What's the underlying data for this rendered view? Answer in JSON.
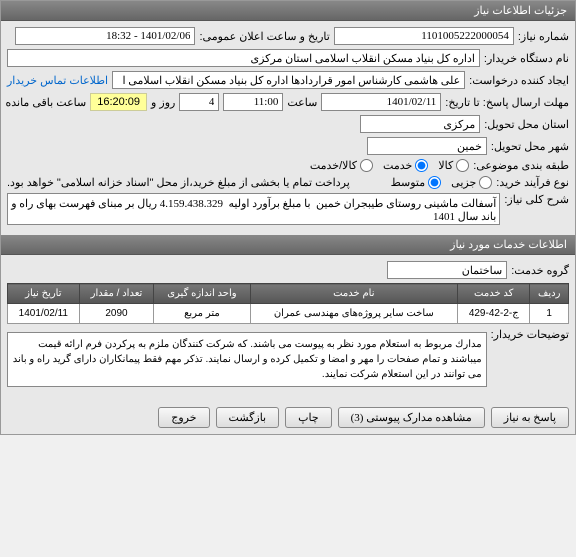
{
  "header": {
    "title": "جزئیات اطلاعات نیاز"
  },
  "form": {
    "need_number_label": "شماره نیاز:",
    "need_number": "1101005222000054",
    "announce_date_label": "تاریخ و ساعت اعلان عمومی:",
    "announce_date": "1401/02/06 - 18:32",
    "buyer_org_label": "نام دستگاه خریدار:",
    "buyer_org": "اداره کل بنیاد مسکن انقلاب اسلامی استان مرکزی",
    "requester_label": "ایجاد کننده درخواست:",
    "requester": "علی هاشمی کارشناس امور قراردادها اداره کل بنیاد مسکن انقلاب اسلامی ا",
    "contact_link": "اطلاعات تماس خریدار",
    "deadline_label": "مهلت ارسال پاسخ: تا تاریخ:",
    "deadline_date": "1401/02/11",
    "time_label": "ساعت",
    "deadline_time": "11:00",
    "days_value": "4",
    "days_label": "روز و",
    "countdown": "16:20:09",
    "remaining_label": "ساعت باقی مانده",
    "province_label": "استان محل تحویل:",
    "province": "مرکزی",
    "city_label": "شهر محل تحویل:",
    "city": "خمین",
    "category_label": "طبقه بندی موضوعی:",
    "cat_kala": "کالا",
    "cat_khadmat": "خدمت",
    "cat_kalakhdmat": "کالا/خدمت",
    "process_label": "نوع فرآیند خرید:",
    "proc_jozi": "جزیی",
    "proc_motevaset": "متوسط",
    "payment_note": "پرداخت تمام یا بخشی از مبلغ خرید،از محل \"اسناد خزانه اسلامی\" خواهد بود.",
    "general_desc_label": "شرح کلی نیاز:",
    "general_desc": "آسفالت ماشینی روستای طیبجران خمین  با مبلغ برآورد اولیه  4.159.438.329 ریال بر مبنای فهرست بهای راه و باند سال 1401"
  },
  "services_header": "اطلاعات خدمات مورد نیاز",
  "services": {
    "group_label": "گروه خدمت:",
    "group_value": "ساختمان",
    "table": {
      "cols": [
        "ردیف",
        "کد خدمت",
        "نام خدمت",
        "واحد اندازه گیری",
        "تعداد / مقدار",
        "تاریخ نیاز"
      ],
      "rows": [
        [
          "1",
          "ج-2-42-429",
          "ساخت سایر پروژه‌های مهندسی عمران",
          "متر مربع",
          "2090",
          "1401/02/11"
        ]
      ]
    }
  },
  "buyer_notes_label": "توضیحات خریدار:",
  "buyer_notes": "مدارك مربوط به استعلام مورد نظر به پیوست می باشند. كه شركت كنندگان ملزم به پركردن فرم ارائه قیمت میباشند و تمام صفحات را مهر و امضا و تكمیل كرده و ارسال نمایند. تذكر مهم فقط پیمانكاران دارای گرید راه و باند می توانند در این استعلام شركت نمایند.",
  "buttons": {
    "respond": "پاسخ به نیاز",
    "attachments": "مشاهده مدارک پیوستی  (3)",
    "print": "چاپ",
    "back": "بازگشت",
    "exit": "خروج"
  }
}
